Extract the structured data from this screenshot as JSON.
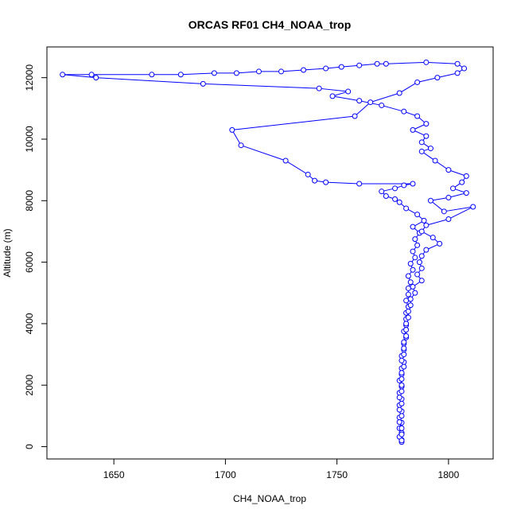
{
  "chart_data": {
    "type": "line",
    "title": "ORCAS RF01 CH4_NOAA_trop",
    "xlabel": "CH4_NOAA_trop",
    "ylabel": "Altitude (m)",
    "xlim": [
      1620,
      1820
    ],
    "ylim": [
      -400,
      13000
    ],
    "xticks": [
      1650,
      1700,
      1750,
      1800
    ],
    "yticks": [
      0,
      2000,
      4000,
      6000,
      8000,
      10000,
      12000
    ],
    "grid": false,
    "legend": "none",
    "series": [
      {
        "marker": "open-circle",
        "color": "#0000ff",
        "points": [
          [
            1779,
            150
          ],
          [
            1779,
            220
          ],
          [
            1778,
            320
          ],
          [
            1779,
            450
          ],
          [
            1778,
            600
          ],
          [
            1779,
            780
          ],
          [
            1778,
            950
          ],
          [
            1779,
            1150
          ],
          [
            1778,
            1350
          ],
          [
            1779,
            1550
          ],
          [
            1778,
            1750
          ],
          [
            1779,
            1950
          ],
          [
            1778,
            2150
          ],
          [
            1779,
            2350
          ],
          [
            1779,
            2550
          ],
          [
            1780,
            2750
          ],
          [
            1779,
            2950
          ],
          [
            1780,
            3150
          ],
          [
            1780,
            3350
          ],
          [
            1781,
            3550
          ],
          [
            1780,
            3750
          ],
          [
            1781,
            3950
          ],
          [
            1781,
            4150
          ],
          [
            1781,
            4350
          ],
          [
            1782,
            4550
          ],
          [
            1781,
            4750
          ],
          [
            1782,
            4950
          ],
          [
            1782,
            5150
          ],
          [
            1783,
            5350
          ],
          [
            1782,
            5550
          ],
          [
            1784,
            5750
          ],
          [
            1783,
            5950
          ],
          [
            1785,
            6150
          ],
          [
            1784,
            6350
          ],
          [
            1786,
            6550
          ],
          [
            1785,
            6750
          ],
          [
            1787,
            6950
          ],
          [
            1784,
            7150
          ],
          [
            1789,
            7350
          ],
          [
            1786,
            7550
          ],
          [
            1781,
            7750
          ],
          [
            1778,
            7950
          ],
          [
            1776,
            8050
          ],
          [
            1772,
            8150
          ],
          [
            1770,
            8300
          ],
          [
            1776,
            8400
          ],
          [
            1780,
            8500
          ],
          [
            1784,
            8550
          ],
          [
            1760,
            8550
          ],
          [
            1745,
            8600
          ],
          [
            1740,
            8650
          ],
          [
            1737,
            8850
          ],
          [
            1727,
            9300
          ],
          [
            1707,
            9800
          ],
          [
            1703,
            10300
          ],
          [
            1758,
            10750
          ],
          [
            1765,
            11200
          ],
          [
            1778,
            11500
          ],
          [
            1786,
            11850
          ],
          [
            1795,
            12000
          ],
          [
            1804,
            12150
          ],
          [
            1807,
            12300
          ],
          [
            1804,
            12450
          ],
          [
            1790,
            12500
          ],
          [
            1772,
            12450
          ],
          [
            1768,
            12450
          ],
          [
            1760,
            12400
          ],
          [
            1752,
            12350
          ],
          [
            1745,
            12300
          ],
          [
            1735,
            12250
          ],
          [
            1725,
            12200
          ],
          [
            1715,
            12200
          ],
          [
            1705,
            12150
          ],
          [
            1695,
            12150
          ],
          [
            1680,
            12100
          ],
          [
            1667,
            12100
          ],
          [
            1640,
            12100
          ],
          [
            1627,
            12100
          ],
          [
            1642,
            12000
          ],
          [
            1690,
            11800
          ],
          [
            1742,
            11650
          ],
          [
            1755,
            11550
          ],
          [
            1748,
            11400
          ],
          [
            1760,
            11250
          ],
          [
            1770,
            11100
          ],
          [
            1780,
            10900
          ],
          [
            1786,
            10750
          ],
          [
            1790,
            10500
          ],
          [
            1784,
            10300
          ],
          [
            1790,
            10100
          ],
          [
            1788,
            9900
          ],
          [
            1792,
            9700
          ],
          [
            1788,
            9600
          ],
          [
            1794,
            9300
          ],
          [
            1800,
            9000
          ],
          [
            1808,
            8800
          ],
          [
            1806,
            8600
          ],
          [
            1802,
            8400
          ],
          [
            1808,
            8250
          ],
          [
            1800,
            8100
          ],
          [
            1792,
            8000
          ],
          [
            1798,
            7650
          ],
          [
            1811,
            7800
          ],
          [
            1800,
            7400
          ],
          [
            1790,
            7200
          ],
          [
            1788,
            7000
          ],
          [
            1793,
            6800
          ],
          [
            1796,
            6600
          ],
          [
            1790,
            6400
          ],
          [
            1788,
            6200
          ],
          [
            1787,
            6000
          ],
          [
            1788,
            5800
          ],
          [
            1786,
            5600
          ],
          [
            1788,
            5400
          ],
          [
            1784,
            5200
          ],
          [
            1785,
            5000
          ],
          [
            1783,
            4800
          ],
          [
            1783,
            4600
          ],
          [
            1782,
            4400
          ],
          [
            1782,
            4200
          ],
          [
            1781,
            4000
          ],
          [
            1781,
            3800
          ],
          [
            1781,
            3600
          ],
          [
            1780,
            3400
          ],
          [
            1780,
            3200
          ],
          [
            1780,
            3000
          ],
          [
            1779,
            2800
          ],
          [
            1780,
            2600
          ],
          [
            1779,
            2400
          ],
          [
            1779,
            2200
          ],
          [
            1779,
            2000
          ],
          [
            1779,
            1800
          ],
          [
            1778,
            1600
          ],
          [
            1779,
            1400
          ],
          [
            1778,
            1200
          ],
          [
            1779,
            1000
          ],
          [
            1778,
            800
          ],
          [
            1779,
            600
          ],
          [
            1779,
            400
          ],
          [
            1779,
            200
          ]
        ]
      }
    ]
  }
}
